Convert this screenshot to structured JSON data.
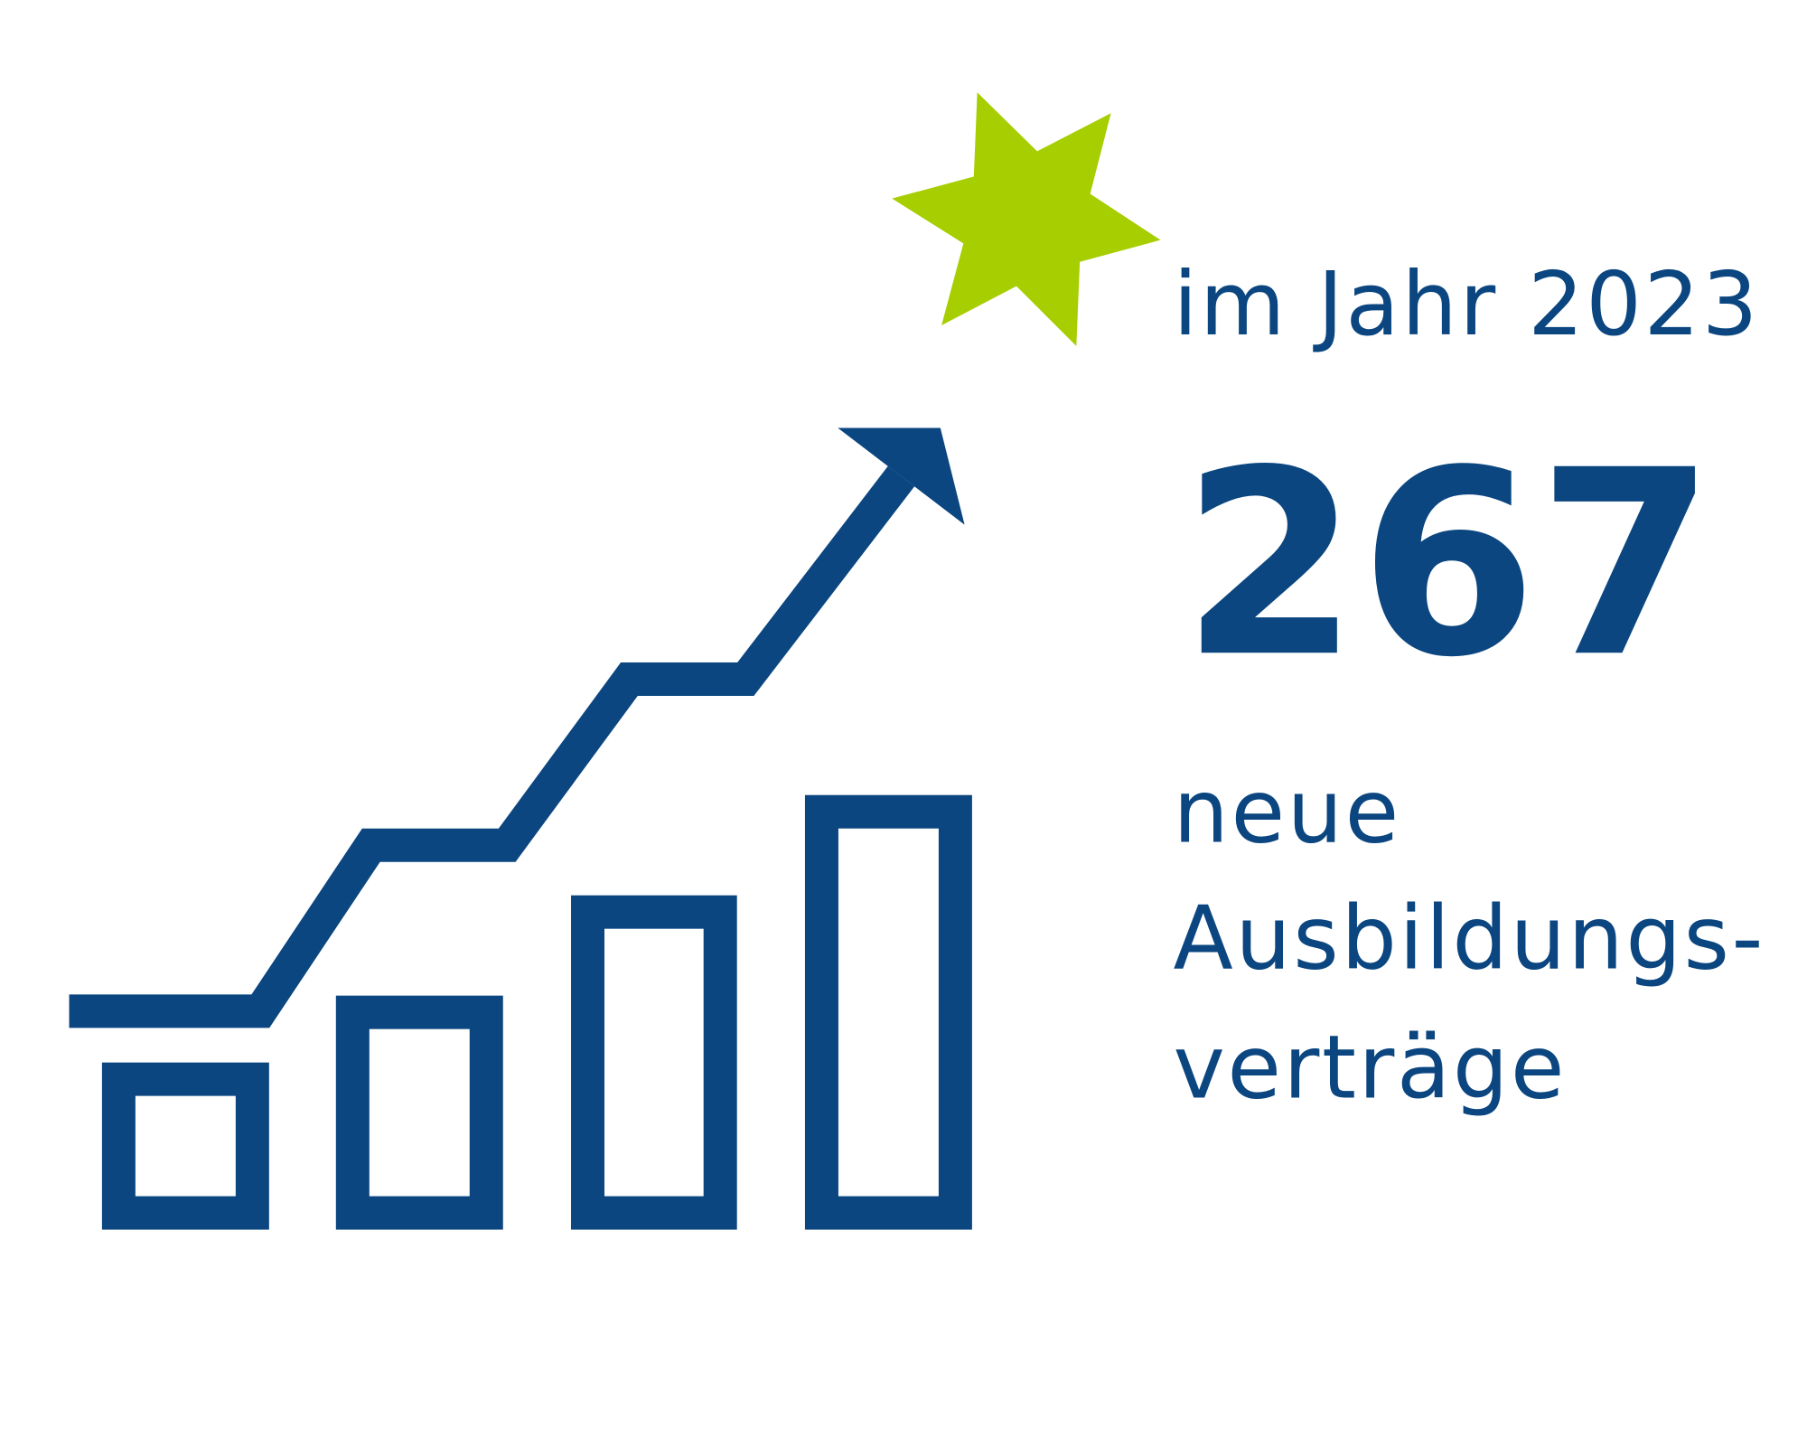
{
  "header": {
    "title": "im Jahr 2023"
  },
  "stat": {
    "value": "267",
    "label_lines": [
      "neue",
      "Ausbildungs-",
      "verträge"
    ]
  }
}
